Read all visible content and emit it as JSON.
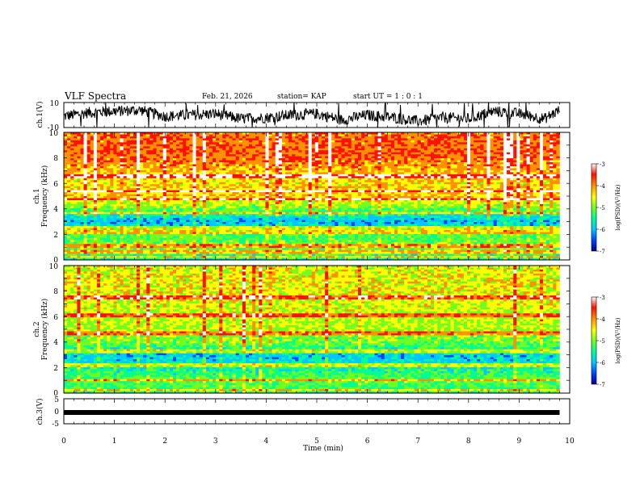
{
  "header": {
    "title": "VLF Spectra",
    "date": "Feb. 21, 2026",
    "station": "station= KAP",
    "start_ut": "start UT =  1 : 0  : 1"
  },
  "chart_data": [
    {
      "type": "line",
      "name": "ch1-waveform",
      "ylabel": "ch.1(V)",
      "ylim": [
        -10,
        10
      ],
      "yticks": [
        "10",
        "-10"
      ],
      "xlim": [
        0,
        10
      ],
      "description_series": "ch.1 voltage, fluctuating roughly between -8 and 9 V over 0–9.8 min",
      "x": [
        0,
        0.5,
        1,
        1.5,
        2,
        2.5,
        3,
        3.5,
        4,
        4.5,
        5,
        5.5,
        6,
        6.5,
        7,
        7.5,
        8,
        8.5,
        9,
        9.5,
        9.8
      ],
      "values": [
        -1,
        2,
        3,
        4,
        -1,
        0,
        1,
        -3,
        -2,
        0,
        1,
        -4,
        0,
        -2,
        -5,
        -2,
        -3,
        3,
        1,
        -3,
        4
      ]
    },
    {
      "type": "heatmap",
      "name": "ch1-spectrogram",
      "ylabel_lines": [
        "ch.1",
        "Frequency (kHz)"
      ],
      "ylim": [
        0,
        10
      ],
      "yticks": [
        "0",
        "2",
        "4",
        "6",
        "8",
        "10"
      ],
      "xlim": [
        0,
        10
      ],
      "data_xmax": 9.8,
      "levels_freq_khz": [
        0,
        1,
        2,
        3,
        4,
        5,
        6,
        7,
        8,
        9,
        10
      ],
      "levels_log_psd": [
        -5.6,
        -5.0,
        -5.2,
        -6.1,
        -5.1,
        -4.2,
        -4.4,
        -4.2,
        -3.8,
        -3.8,
        -3.9
      ],
      "bright_lines_khz": [
        0.25,
        0.6,
        1.1,
        2.2,
        2.5,
        3.7,
        4.8,
        5.4,
        6.6
      ],
      "colorbar": {
        "label": "log(PSD)(V²/Hz)",
        "ticks": [
          "-3",
          "-4",
          "-5",
          "-6",
          "-7"
        ],
        "range": [
          -7,
          -3
        ]
      }
    },
    {
      "type": "heatmap",
      "name": "ch2-spectrogram",
      "ylabel_lines": [
        "ch.2",
        "Frequency (kHz)"
      ],
      "ylim": [
        0,
        10
      ],
      "yticks": [
        "0",
        "2",
        "4",
        "6",
        "8",
        "10"
      ],
      "xlim": [
        0,
        10
      ],
      "data_xmax": 9.8,
      "levels_freq_khz": [
        0,
        1,
        2,
        3,
        4,
        5,
        6,
        7,
        8,
        9,
        10
      ],
      "levels_log_psd": [
        -5.4,
        -5.1,
        -5.6,
        -6.0,
        -5.0,
        -4.8,
        -4.7,
        -4.6,
        -4.5,
        -4.5,
        -4.6
      ],
      "bright_lines_khz": [
        0.2,
        1.0,
        2.2,
        3.3,
        4.7,
        6.1,
        7.5
      ],
      "colorbar": {
        "label": "log(PSD)(V²/Hz)",
        "ticks": [
          "-3",
          "-4",
          "-5",
          "-6",
          "-7"
        ],
        "range": [
          -7,
          -3
        ]
      }
    },
    {
      "type": "line",
      "name": "ch3-waveform",
      "ylabel": "ch.3(V)",
      "ylim": [
        -5,
        5
      ],
      "yticks": [
        "5",
        "0",
        "-5"
      ],
      "xlim": [
        0,
        10
      ],
      "x": [
        0,
        9.8
      ],
      "values": [
        0,
        0
      ]
    }
  ],
  "xaxis": {
    "label": "Time (min)",
    "ticks": [
      "0",
      "1",
      "2",
      "3",
      "4",
      "5",
      "6",
      "7",
      "8",
      "9",
      "10"
    ]
  },
  "colormap": [
    "#000090",
    "#0040ff",
    "#00c8ff",
    "#00ff90",
    "#70ff20",
    "#ffff00",
    "#ff9000",
    "#ff1000",
    "#ffffff"
  ]
}
